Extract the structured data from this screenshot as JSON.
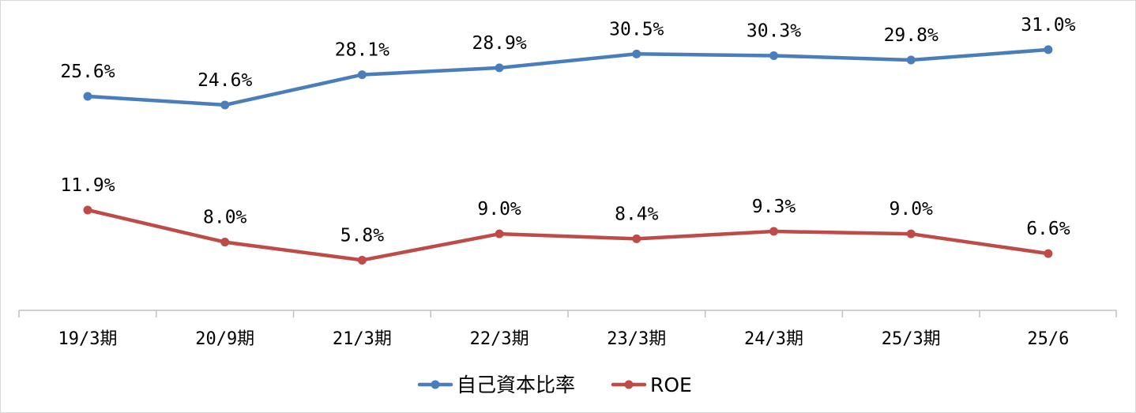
{
  "chart_data": {
    "type": "line",
    "categories": [
      "19/3期",
      "20/9期",
      "21/3期",
      "22/3期",
      "23/3期",
      "24/3期",
      "25/3期",
      "25/6"
    ],
    "series": [
      {
        "name": "自己資本比率",
        "color": "#4a7ebb",
        "values": [
          25.6,
          24.6,
          28.1,
          28.9,
          30.5,
          30.3,
          29.8,
          31.0
        ],
        "labels": [
          "25.6%",
          "24.6%",
          "28.1%",
          "28.9%",
          "30.5%",
          "30.3%",
          "29.8%",
          "31.0%"
        ]
      },
      {
        "name": "ROE",
        "color": "#be4b48",
        "values": [
          11.9,
          8.0,
          5.8,
          9.0,
          8.4,
          9.3,
          9.0,
          6.6
        ],
        "labels": [
          "11.9%",
          "8.0%",
          "5.8%",
          "9.0%",
          "8.4%",
          "9.3%",
          "9.0%",
          "6.6%"
        ]
      }
    ],
    "title": "",
    "xlabel": "",
    "ylabel": "",
    "ylim": [
      0,
      35
    ],
    "grid": false,
    "legend_position": "bottom-center"
  }
}
